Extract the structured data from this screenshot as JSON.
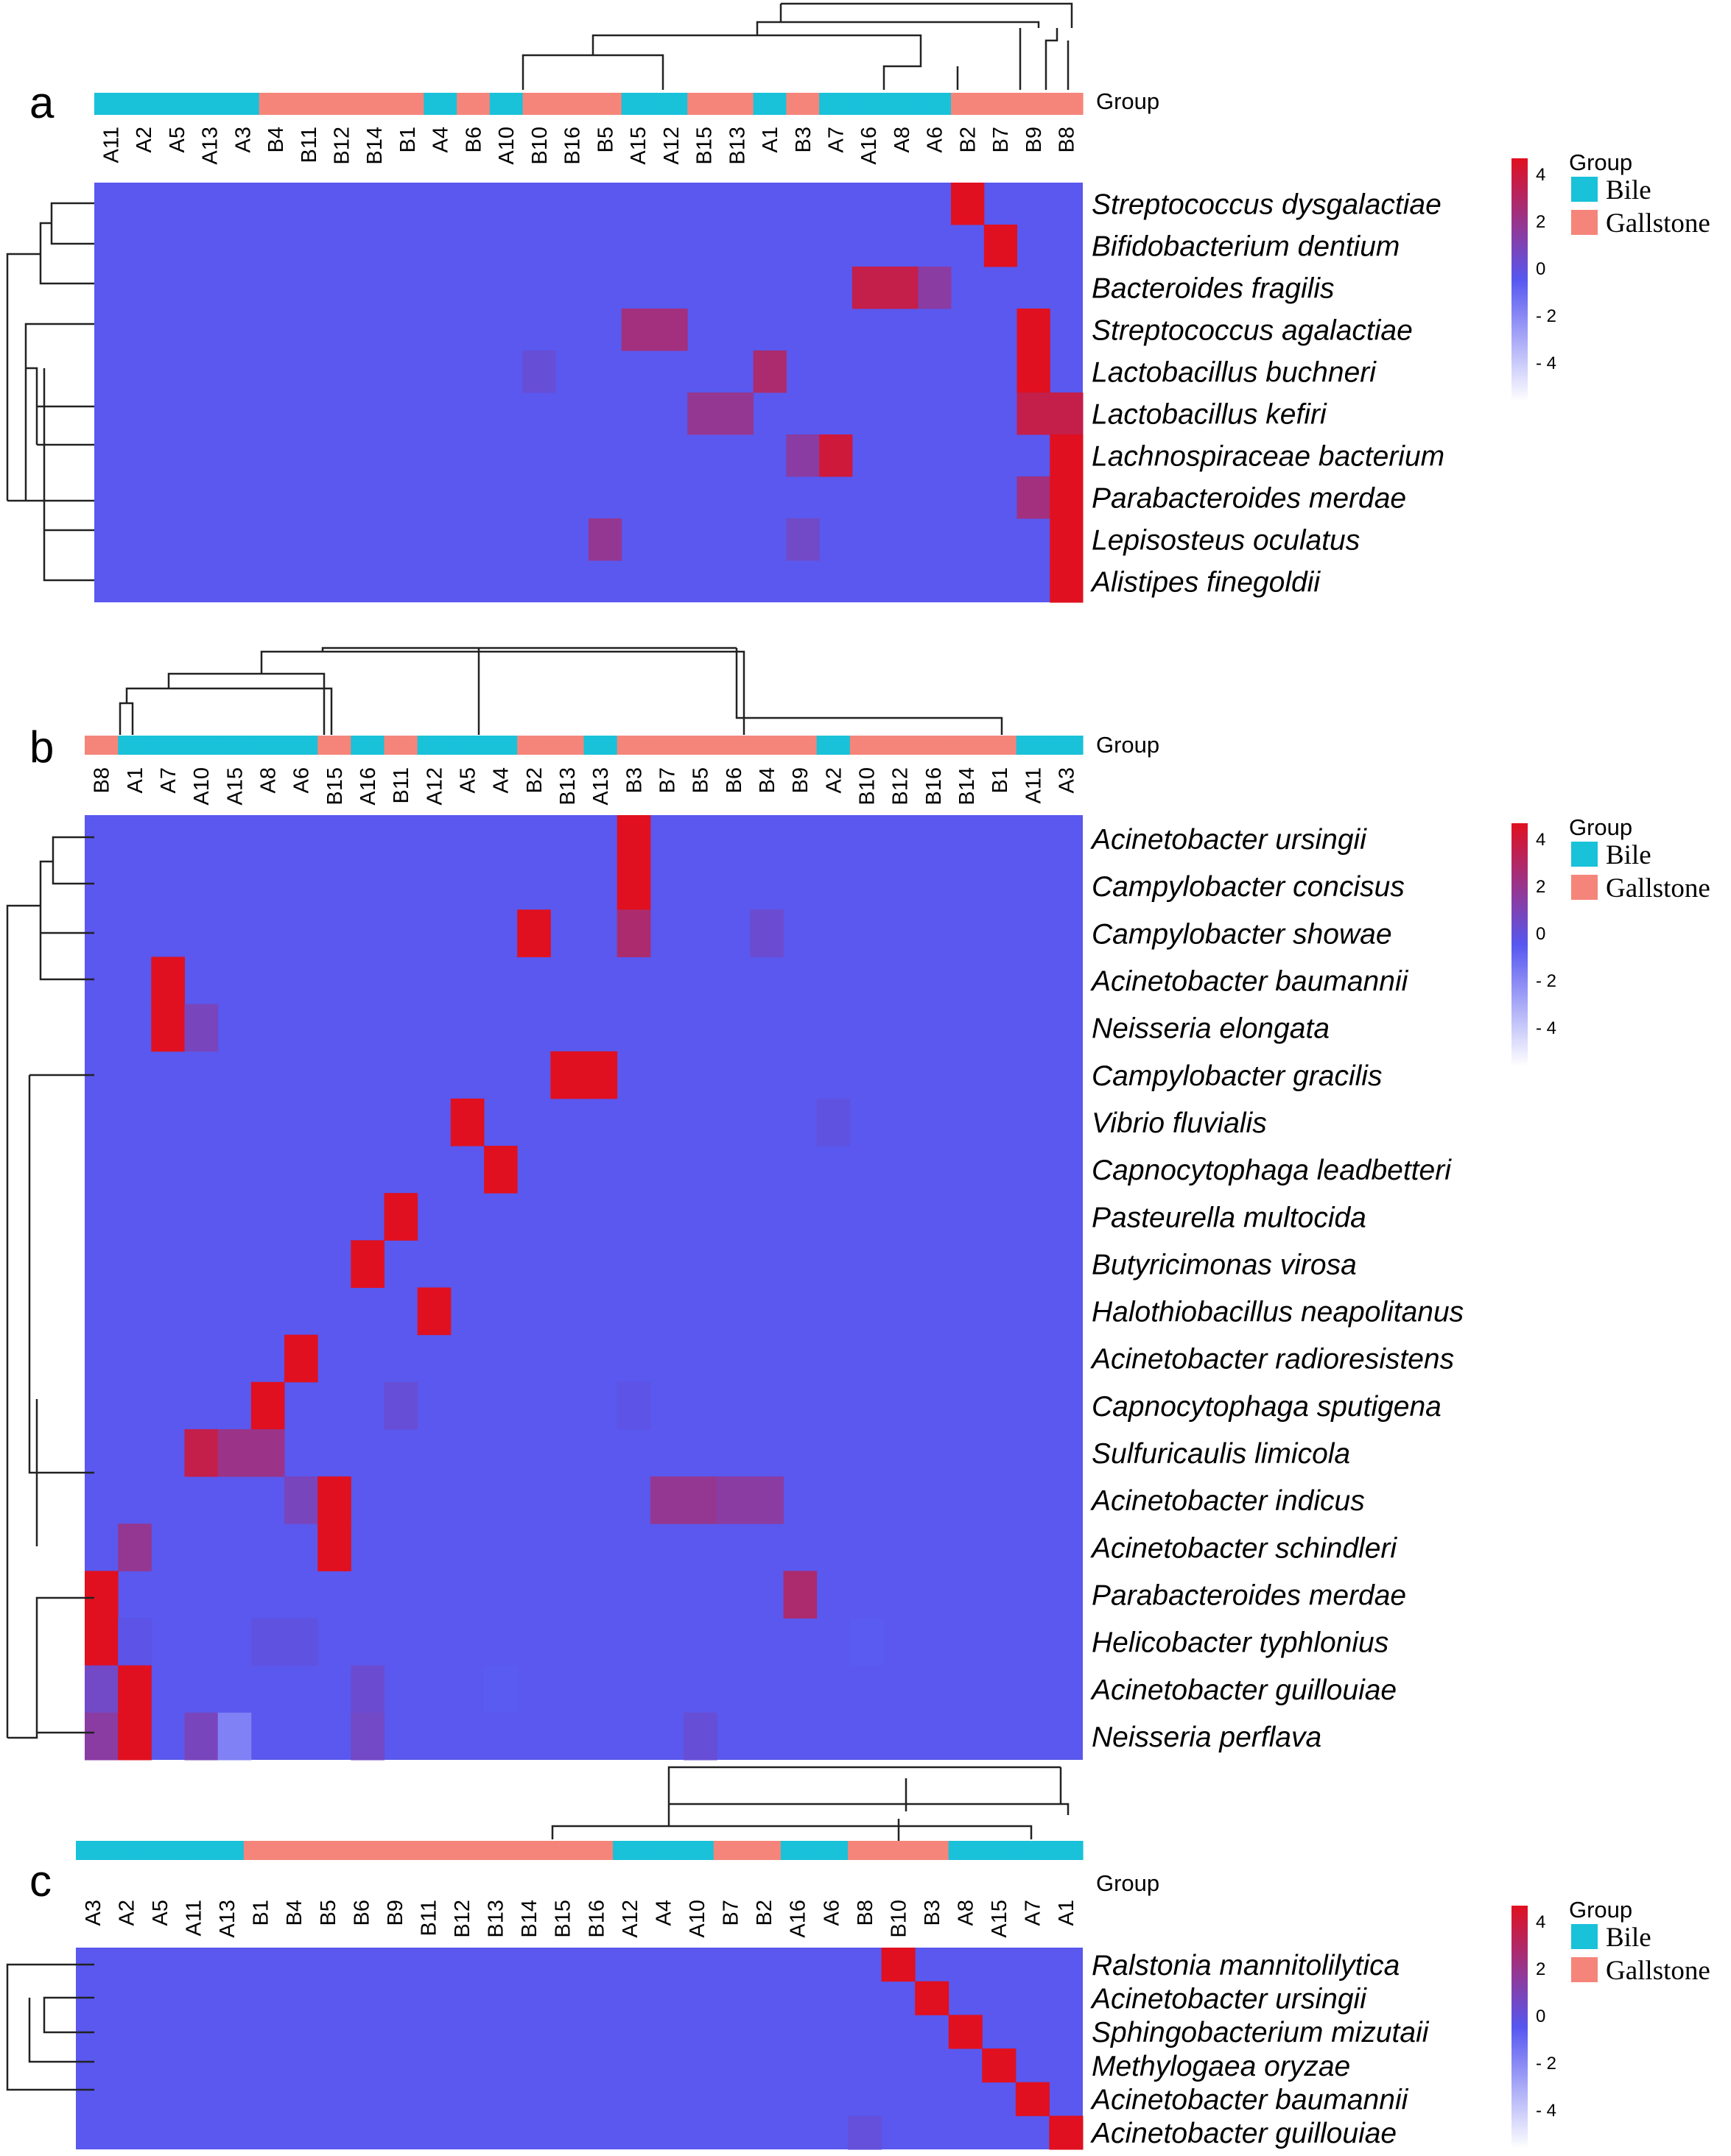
{
  "colors": {
    "bile": "#19c1d9",
    "gallstone": "#f5857a",
    "low": "#ffffff",
    "mid": "#5657f0",
    "high": "#e01020",
    "base": "#5a58ee"
  },
  "legend": {
    "title": "Group",
    "items": [
      "Bile",
      "Gallstone"
    ],
    "ticks": [
      "4",
      "2",
      "0",
      "- 2",
      "- 4"
    ]
  },
  "group_label": "Group",
  "chart_data": [
    {
      "panel": "a",
      "type": "heatmap",
      "columns": [
        "A11",
        "A2",
        "A5",
        "A13",
        "A3",
        "B4",
        "B11",
        "B12",
        "B14",
        "B1",
        "A4",
        "B6",
        "A10",
        "B10",
        "B16",
        "B5",
        "A15",
        "A12",
        "B15",
        "B13",
        "A1",
        "B3",
        "A7",
        "A16",
        "A8",
        "A6",
        "B2",
        "B7",
        "B9",
        "B8"
      ],
      "rows": [
        "Streptococcus dysgalactiae",
        "Bifidobacterium dentium",
        "Bacteroides fragilis",
        "Streptococcus agalactiae",
        "Lactobacillus buchneri",
        "Lactobacillus kefiri",
        "Lachnospiraceae bacterium",
        "Parabacteroides merdae",
        "Lepisosteus oculatus",
        "Alistipes finegoldii"
      ],
      "scale": [
        -4,
        4
      ],
      "baseline": -0.5,
      "cells": [
        {
          "r": 0,
          "c": 26,
          "v": 4.5
        },
        {
          "r": 1,
          "c": 27,
          "v": 4.5
        },
        {
          "r": 2,
          "c": 23,
          "v": 3.2
        },
        {
          "r": 2,
          "c": 24,
          "v": 3.2
        },
        {
          "r": 2,
          "c": 25,
          "v": 1.5
        },
        {
          "r": 3,
          "c": 16,
          "v": 2.2
        },
        {
          "r": 3,
          "c": 17,
          "v": 2.2
        },
        {
          "r": 3,
          "c": 28,
          "v": 4.5
        },
        {
          "r": 4,
          "c": 20,
          "v": 2.5
        },
        {
          "r": 4,
          "c": 28,
          "v": 4.5
        },
        {
          "r": 4,
          "c": 13,
          "v": 0.5
        },
        {
          "r": 5,
          "c": 18,
          "v": 1.8
        },
        {
          "r": 5,
          "c": 19,
          "v": 1.8
        },
        {
          "r": 5,
          "c": 28,
          "v": 3.2
        },
        {
          "r": 5,
          "c": 29,
          "v": 3.2
        },
        {
          "r": 6,
          "c": 21,
          "v": 1.5
        },
        {
          "r": 6,
          "c": 22,
          "v": 3.5
        },
        {
          "r": 6,
          "c": 29,
          "v": 4.5
        },
        {
          "r": 7,
          "c": 28,
          "v": 2.2
        },
        {
          "r": 7,
          "c": 29,
          "v": 4.5
        },
        {
          "r": 8,
          "c": 15,
          "v": 1.8
        },
        {
          "r": 8,
          "c": 21,
          "v": 0.8
        },
        {
          "r": 8,
          "c": 29,
          "v": 4.5
        },
        {
          "r": 9,
          "c": 29,
          "v": 4.5
        }
      ]
    },
    {
      "panel": "b",
      "type": "heatmap",
      "columns": [
        "B8",
        "A1",
        "A7",
        "A10",
        "A15",
        "A8",
        "A6",
        "B15",
        "A16",
        "B11",
        "A12",
        "A5",
        "A4",
        "B2",
        "B13",
        "A13",
        "B3",
        "B7",
        "B5",
        "B6",
        "B4",
        "B9",
        "A2",
        "B10",
        "B12",
        "B16",
        "B14",
        "B1",
        "A11",
        "A3"
      ],
      "rows": [
        "Acinetobacter ursingii",
        "Campylobacter concisus",
        "Campylobacter showae",
        "Acinetobacter baumannii",
        "Neisseria elongata",
        "Campylobacter gracilis",
        "Vibrio fluvialis",
        "Capnocytophaga leadbetteri",
        "Pasteurella multocida",
        "Butyricimonas virosa",
        "Halothiobacillus neapolitanus",
        "Acinetobacter radioresistens",
        "Capnocytophaga sputigena",
        "Sulfuricaulis limicola",
        "Acinetobacter indicus",
        "Acinetobacter schindleri",
        "Parabacteroides merdae",
        "Helicobacter typhlonius",
        "Acinetobacter guillouiae",
        "Neisseria perflava"
      ],
      "scale": [
        -4,
        4
      ],
      "baseline": -0.5,
      "cells": [
        {
          "r": 0,
          "c": 16,
          "v": 4.5
        },
        {
          "r": 1,
          "c": 16,
          "v": 4.5
        },
        {
          "r": 2,
          "c": 13,
          "v": 4.5
        },
        {
          "r": 2,
          "c": 16,
          "v": 2.5
        },
        {
          "r": 2,
          "c": 20,
          "v": 0.6
        },
        {
          "r": 3,
          "c": 2,
          "v": 4.5
        },
        {
          "r": 4,
          "c": 2,
          "v": 4.5
        },
        {
          "r": 4,
          "c": 3,
          "v": 1.0
        },
        {
          "r": 5,
          "c": 14,
          "v": 4.2
        },
        {
          "r": 5,
          "c": 15,
          "v": 4.2
        },
        {
          "r": 6,
          "c": 11,
          "v": 4.5
        },
        {
          "r": 6,
          "c": 22,
          "v": 0.3
        },
        {
          "r": 7,
          "c": 12,
          "v": 4.5
        },
        {
          "r": 8,
          "c": 9,
          "v": 4.5
        },
        {
          "r": 9,
          "c": 8,
          "v": 4.5
        },
        {
          "r": 10,
          "c": 10,
          "v": 4.5
        },
        {
          "r": 11,
          "c": 6,
          "v": 4.5
        },
        {
          "r": 12,
          "c": 5,
          "v": 4.5
        },
        {
          "r": 12,
          "c": 9,
          "v": 0.5
        },
        {
          "r": 12,
          "c": 16,
          "v": 0.2
        },
        {
          "r": 13,
          "c": 3,
          "v": 3.2
        },
        {
          "r": 13,
          "c": 4,
          "v": 2.0
        },
        {
          "r": 13,
          "c": 5,
          "v": 2.0
        },
        {
          "r": 14,
          "c": 6,
          "v": 1.0
        },
        {
          "r": 14,
          "c": 7,
          "v": 4.5
        },
        {
          "r": 14,
          "c": 17,
          "v": 1.8
        },
        {
          "r": 14,
          "c": 18,
          "v": 1.8
        },
        {
          "r": 14,
          "c": 19,
          "v": 1.5
        },
        {
          "r": 14,
          "c": 20,
          "v": 1.5
        },
        {
          "r": 15,
          "c": 1,
          "v": 1.8
        },
        {
          "r": 15,
          "c": 7,
          "v": 4.5
        },
        {
          "r": 16,
          "c": 0,
          "v": 4.5
        },
        {
          "r": 16,
          "c": 21,
          "v": 2.5
        },
        {
          "r": 17,
          "c": 0,
          "v": 4.5
        },
        {
          "r": 17,
          "c": 1,
          "v": 0.2
        },
        {
          "r": 17,
          "c": 5,
          "v": 0.3
        },
        {
          "r": 17,
          "c": 6,
          "v": 0.3
        },
        {
          "r": 17,
          "c": 23,
          "v": -0.1
        },
        {
          "r": 18,
          "c": 0,
          "v": 0.8
        },
        {
          "r": 18,
          "c": 1,
          "v": 4.5
        },
        {
          "r": 18,
          "c": 8,
          "v": 0.6
        },
        {
          "r": 18,
          "c": 12,
          "v": -0.1
        },
        {
          "r": 19,
          "c": 0,
          "v": 1.5
        },
        {
          "r": 19,
          "c": 1,
          "v": 4.5
        },
        {
          "r": 19,
          "c": 3,
          "v": 1.0
        },
        {
          "r": 19,
          "c": 8,
          "v": 0.8
        },
        {
          "r": 19,
          "c": 18,
          "v": 0.5
        },
        {
          "r": 19,
          "c": 4,
          "v": -1.0
        }
      ]
    },
    {
      "panel": "c",
      "type": "heatmap",
      "columns": [
        "A3",
        "A2",
        "A5",
        "A11",
        "A13",
        "B1",
        "B4",
        "B5",
        "B6",
        "B9",
        "B11",
        "B12",
        "B13",
        "B14",
        "B15",
        "B16",
        "A12",
        "A4",
        "A10",
        "B7",
        "B2",
        "A16",
        "A6",
        "B8",
        "B10",
        "B3",
        "A8",
        "A15",
        "A7",
        "A1"
      ],
      "rows": [
        "Ralstonia mannitolilytica",
        "Acinetobacter ursingii",
        "Sphingobacterium mizutaii",
        "Methylogaea oryzae",
        "Acinetobacter baumannii",
        "Acinetobacter guillouiae"
      ],
      "scale": [
        -4,
        4
      ],
      "baseline": -0.5,
      "cells": [
        {
          "r": 0,
          "c": 24,
          "v": 4.5
        },
        {
          "r": 1,
          "c": 25,
          "v": 4.5
        },
        {
          "r": 2,
          "c": 26,
          "v": 4.5
        },
        {
          "r": 3,
          "c": 27,
          "v": 4.5
        },
        {
          "r": 4,
          "c": 28,
          "v": 4.5
        },
        {
          "r": 5,
          "c": 29,
          "v": 4.5
        },
        {
          "r": 5,
          "c": 23,
          "v": 0.4
        }
      ]
    }
  ]
}
